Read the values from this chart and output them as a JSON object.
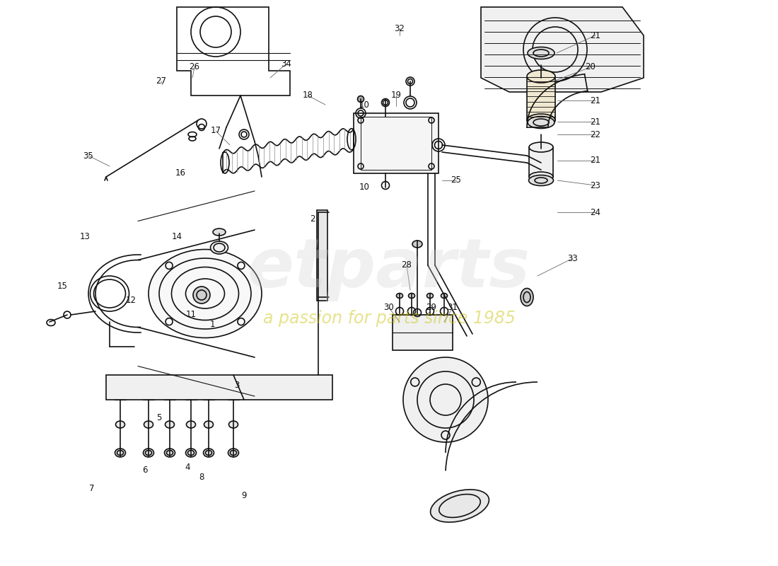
{
  "bg_color": "#ffffff",
  "line_color": "#111111",
  "label_color": "#111111",
  "wm1": "etparts",
  "wm2": "a passion for parts since 1985",
  "wm1_color": "#bbbbbb",
  "wm2_color": "#c8c000",
  "label_fs": 8.5,
  "lw": 1.2
}
